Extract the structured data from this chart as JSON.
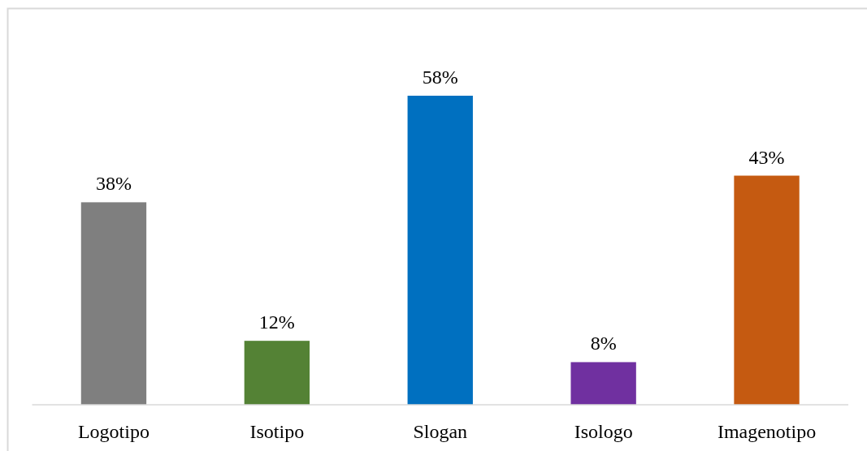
{
  "chart_data": {
    "type": "bar",
    "categories": [
      "Logotipo",
      "Isotipo",
      "Slogan",
      "Isologo",
      "Imagenotipo"
    ],
    "values": [
      38,
      12,
      58,
      8,
      43
    ],
    "colors": [
      "#7f7f7f",
      "#548235",
      "#0070c0",
      "#7030a0",
      "#c55a11"
    ],
    "value_labels": [
      "38%",
      "12%",
      "58%",
      "8%",
      "43%"
    ]
  }
}
